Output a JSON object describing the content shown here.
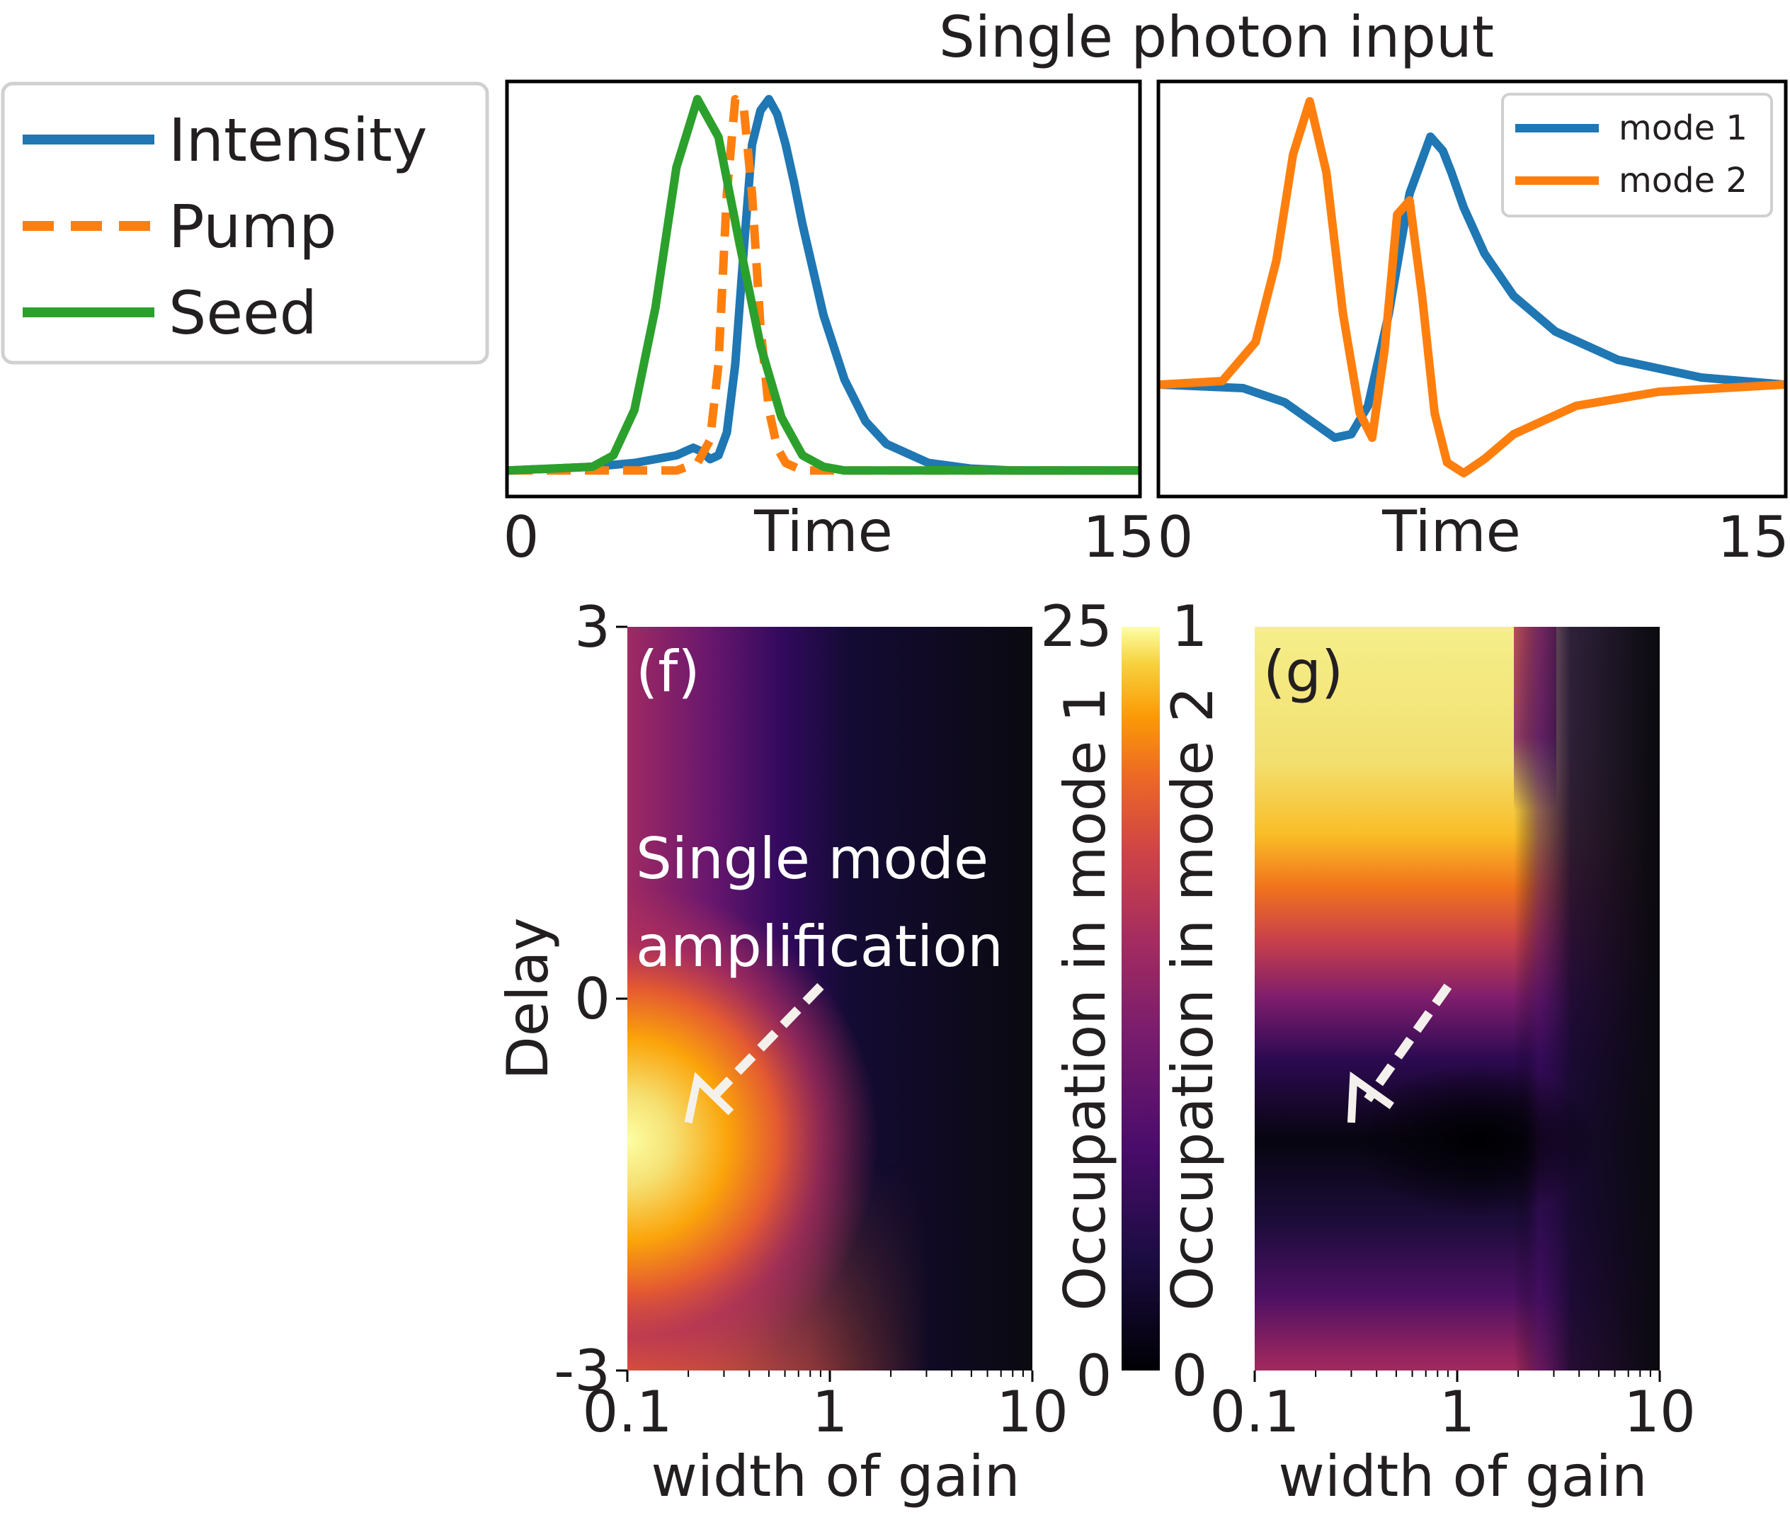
{
  "figure": {
    "title": "Single photon input"
  },
  "chart_data": [
    {
      "type": "line",
      "xlabel": "Time",
      "xlim": [
        0,
        15
      ],
      "x_tick_labels": [
        "0",
        "15"
      ],
      "grid": false,
      "legend": {
        "placement": "outside-left"
      },
      "series": [
        {
          "name": "Intensity",
          "color": "#1f77b4",
          "style": "solid",
          "x": [
            0,
            2,
            3,
            4,
            4.2,
            4.4,
            4.6,
            4.8,
            5,
            5.2,
            5.4,
            5.6,
            5.8,
            6,
            6.2,
            6.4,
            6.6,
            6.8,
            7,
            7.5,
            8,
            8.5,
            9,
            10,
            11,
            12,
            13,
            15
          ],
          "y": [
            0.02,
            0.03,
            0.04,
            0.06,
            0.07,
            0.08,
            0.07,
            0.05,
            0.06,
            0.12,
            0.3,
            0.6,
            0.88,
            0.97,
            1.0,
            0.96,
            0.88,
            0.78,
            0.67,
            0.43,
            0.26,
            0.15,
            0.09,
            0.04,
            0.025,
            0.02,
            0.02,
            0.02
          ]
        },
        {
          "name": "Pump",
          "color": "#ff7f0e",
          "style": "dashed",
          "x": [
            0,
            3,
            4,
            4.5,
            4.8,
            5.0,
            5.2,
            5.4,
            5.6,
            5.8,
            6,
            6.2,
            6.4,
            6.6,
            7,
            8,
            15
          ],
          "y": [
            0.02,
            0.02,
            0.02,
            0.04,
            0.1,
            0.3,
            0.75,
            1.0,
            0.98,
            0.75,
            0.4,
            0.18,
            0.08,
            0.04,
            0.02,
            0.02,
            0.02
          ]
        },
        {
          "name": "Seed",
          "color": "#2ca02c",
          "style": "solid",
          "x": [
            0,
            2,
            2.5,
            3,
            3.5,
            4,
            4.5,
            5,
            5.5,
            6,
            6.5,
            7,
            7.5,
            8,
            15
          ],
          "y": [
            0.02,
            0.03,
            0.06,
            0.18,
            0.45,
            0.82,
            1.0,
            0.9,
            0.62,
            0.35,
            0.16,
            0.06,
            0.03,
            0.02,
            0.02
          ]
        }
      ]
    },
    {
      "type": "line",
      "xlabel": "Time",
      "xlim": [
        0,
        15
      ],
      "x_tick_labels": [
        "0",
        "15"
      ],
      "grid": false,
      "legend": {
        "placement": "top-right"
      },
      "series": [
        {
          "name": "mode 1",
          "color": "#1f77b4",
          "style": "solid",
          "x": [
            0,
            2,
            3,
            3.6,
            4.2,
            4.6,
            5,
            5.5,
            6,
            6.5,
            6.8,
            7,
            7.3,
            7.8,
            8.5,
            9.5,
            11,
            13,
            15
          ],
          "y": [
            0.2,
            0.19,
            0.15,
            0.1,
            0.05,
            0.06,
            0.14,
            0.4,
            0.74,
            0.9,
            0.86,
            0.8,
            0.7,
            0.57,
            0.45,
            0.35,
            0.27,
            0.22,
            0.2
          ]
        },
        {
          "name": "mode 2",
          "color": "#ff7f0e",
          "style": "solid",
          "x": [
            0,
            1.5,
            2.3,
            2.8,
            3.2,
            3.6,
            4,
            4.4,
            4.8,
            5.1,
            5.4,
            5.7,
            6,
            6.3,
            6.6,
            6.9,
            7.3,
            7.8,
            8.5,
            10,
            12,
            15
          ],
          "y": [
            0.2,
            0.21,
            0.32,
            0.55,
            0.85,
            1.0,
            0.8,
            0.4,
            0.12,
            0.05,
            0.3,
            0.68,
            0.72,
            0.45,
            0.12,
            -0.02,
            -0.05,
            -0.01,
            0.06,
            0.14,
            0.18,
            0.2
          ]
        }
      ]
    },
    {
      "type": "heatmap",
      "panel_label": "(f)",
      "xlabel": "width of gain",
      "ylabel": "Delay",
      "x_scale": "log",
      "xlim": [
        0.1,
        10
      ],
      "ylim": [
        -3,
        3
      ],
      "x_tick_labels": [
        "0.1",
        "1",
        "10"
      ],
      "y_tick_labels": [
        "3",
        "0",
        "-3"
      ],
      "colormap": "inferno",
      "colorbar": {
        "label": "Occupation in mode 1",
        "min_label": "0",
        "max_label": "25",
        "range": [
          0,
          25
        ]
      },
      "annotation": {
        "text_lines": [
          "Single mode",
          "amplification"
        ],
        "arrow_from": [
          0.9,
          0.1
        ],
        "arrow_to": [
          0.2,
          -1.0
        ]
      }
    },
    {
      "type": "heatmap",
      "panel_label": "(g)",
      "xlabel": "width of gain",
      "x_scale": "log",
      "xlim": [
        0.1,
        10
      ],
      "ylim": [
        -3,
        3
      ],
      "x_tick_labels": [
        "0.1",
        "1",
        "10"
      ],
      "colormap": "inferno",
      "colorbar": {
        "label": "Occupation in mode 2",
        "min_label": "0",
        "max_label": "1",
        "range": [
          0,
          1
        ]
      },
      "annotation": {
        "arrow_from": [
          0.9,
          0.1
        ],
        "arrow_to": [
          0.3,
          -1.0
        ]
      }
    }
  ]
}
